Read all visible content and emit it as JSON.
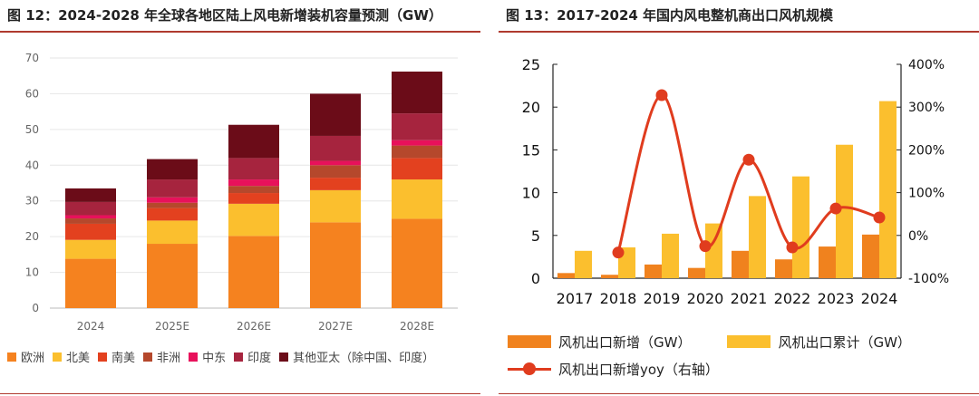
{
  "left": {
    "title": "图 12：2024-2028 年全球各地区陆上风电新增装机容量预测（GW）"
  },
  "right": {
    "title": "图 13：2017-2024 年国内风电整机商出口风机规模",
    "legend": {
      "bar1": "风机出口新增（GW）",
      "bar2": "风机出口累计（GW）",
      "line": "风机出口新增yoy（右轴）"
    }
  },
  "chart_data": [
    {
      "type": "bar",
      "stacked": true,
      "title": "图 12：2024-2028 年全球各地区陆上风电新增装机容量预测（GW）",
      "categories": [
        "2024",
        "2025E",
        "2026E",
        "2027E",
        "2028E"
      ],
      "ylim": [
        0,
        70
      ],
      "yticks": [
        0,
        10,
        20,
        30,
        40,
        50,
        60,
        70
      ],
      "legend_position": "bottom",
      "series": [
        {
          "name": "欧洲",
          "color": "#f5821f",
          "values": [
            13.8,
            18.0,
            20.2,
            24.0,
            25.0
          ]
        },
        {
          "name": "北美",
          "color": "#fbbf2e",
          "values": [
            5.3,
            6.5,
            9.0,
            9.0,
            11.0
          ]
        },
        {
          "name": "南美",
          "color": "#e3411f",
          "values": [
            4.5,
            3.5,
            3.0,
            3.5,
            6.0
          ]
        },
        {
          "name": "非洲",
          "color": "#b5482c",
          "values": [
            1.5,
            1.5,
            2.0,
            3.5,
            3.5
          ]
        },
        {
          "name": "中东",
          "color": "#e8115b",
          "values": [
            0.9,
            1.5,
            1.8,
            1.2,
            1.5
          ]
        },
        {
          "name": "印度",
          "color": "#a6243e",
          "values": [
            3.7,
            5.0,
            6.0,
            7.0,
            7.5
          ]
        },
        {
          "name": "其他亚太（除中国、印度）",
          "color": "#6b0c18",
          "values": [
            3.8,
            5.7,
            9.3,
            11.8,
            11.7
          ]
        }
      ]
    },
    {
      "type": "bar",
      "title": "图 13：2017-2024 年国内风电整机商出口风机规模",
      "categories": [
        "2017",
        "2018",
        "2019",
        "2020",
        "2021",
        "2022",
        "2023",
        "2024"
      ],
      "ylim": [
        0,
        25
      ],
      "yticks": [
        0,
        5,
        10,
        15,
        20,
        25
      ],
      "y2lim": [
        -1.0,
        4.0
      ],
      "y2ticks": [
        "-100%",
        "0%",
        "100%",
        "200%",
        "300%",
        "400%"
      ],
      "legend_position": "bottom",
      "series": [
        {
          "name": "风机出口新增（GW）",
          "type": "bar",
          "color": "#f0821e",
          "values": [
            0.6,
            0.4,
            1.6,
            1.2,
            3.2,
            2.2,
            3.7,
            5.1
          ]
        },
        {
          "name": "风机出口累计（GW）",
          "type": "bar",
          "color": "#fbbf2e",
          "values": [
            3.2,
            3.6,
            5.2,
            6.4,
            9.6,
            11.9,
            15.6,
            20.7
          ]
        },
        {
          "name": "风机出口新增yoy（右轴）",
          "type": "line",
          "axis": "right",
          "color": "#e03c1e",
          "values": [
            null,
            -0.4,
            3.28,
            -0.25,
            1.77,
            -0.28,
            0.63,
            0.42
          ]
        }
      ]
    }
  ]
}
